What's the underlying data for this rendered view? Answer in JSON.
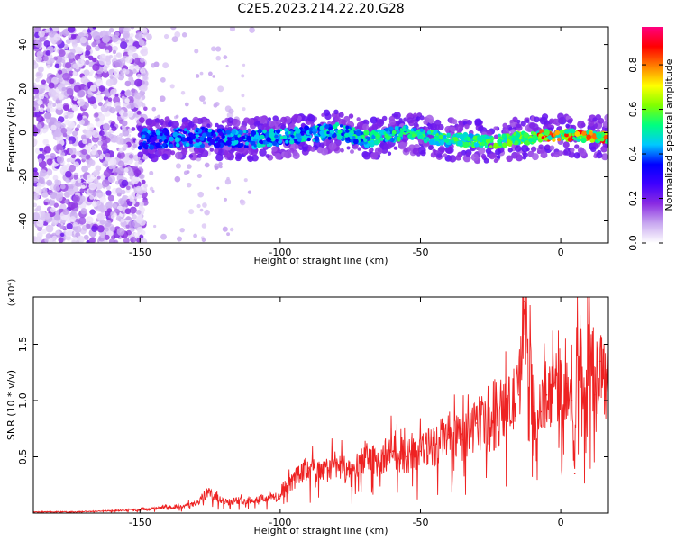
{
  "title": "C2E5.2023.214.22.20.G28",
  "chart_data": [
    {
      "type": "heatmap",
      "xlabel": "Height of straight line (km)",
      "ylabel": "Frequency (Hz)",
      "xlim": [
        -188,
        17
      ],
      "ylim": [
        -50,
        48
      ],
      "xticks": [
        -150,
        -100,
        -50,
        0
      ],
      "yticks": [
        -40,
        -20,
        0,
        20,
        40
      ],
      "colorbar": {
        "label": "Normalized spectral amplitude",
        "range": [
          0,
          0.97
        ],
        "ticks": [
          "0.0",
          "0.2",
          "0.4",
          "0.6",
          "0.8"
        ],
        "colors": [
          "#ffffff",
          "#c8a8f0",
          "#8a2be2",
          "#3f00ff",
          "#0000ff",
          "#00c8ff",
          "#00ff80",
          "#80ff00",
          "#ffff00",
          "#ff8000",
          "#ff0000",
          "#ff0080"
        ]
      },
      "ridge": [
        {
          "x": -150,
          "y": -3
        },
        {
          "x": -130,
          "y": -2
        },
        {
          "x": -110,
          "y": -3
        },
        {
          "x": -90,
          "y": -1
        },
        {
          "x": -80,
          "y": 1
        },
        {
          "x": -70,
          "y": -3
        },
        {
          "x": -55,
          "y": 0
        },
        {
          "x": -40,
          "y": -3
        },
        {
          "x": -25,
          "y": -4
        },
        {
          "x": -10,
          "y": -2
        },
        {
          "x": 0,
          "y": -1
        },
        {
          "x": 15,
          "y": -2
        }
      ]
    },
    {
      "type": "line",
      "xlabel": "Height of straight line (km)",
      "ylabel": "SNR (10 * v/v)",
      "yscale_label": "(x10⁴)",
      "xlim": [
        -188,
        17
      ],
      "ylim": [
        0.0,
        1.92
      ],
      "xticks": [
        -150,
        -100,
        -50,
        0
      ],
      "yticks": [
        0.5,
        1.0,
        1.5
      ],
      "color": "#ee2222",
      "series": [
        {
          "x": [
            -188,
            -175,
            -160,
            -150,
            -140,
            -130,
            -126,
            -120,
            -110,
            -100,
            -95,
            -90,
            -85,
            -80,
            -75,
            -70,
            -65,
            -60,
            -55,
            -50,
            -45,
            -40,
            -35,
            -30,
            -25,
            -20,
            -15,
            -13,
            -10,
            -7,
            -5,
            -3,
            0,
            2,
            4,
            5,
            6,
            8,
            9,
            10,
            12,
            14,
            16
          ],
          "y": [
            0.01,
            0.01,
            0.02,
            0.03,
            0.05,
            0.08,
            0.18,
            0.1,
            0.12,
            0.15,
            0.3,
            0.4,
            0.35,
            0.45,
            0.35,
            0.5,
            0.45,
            0.55,
            0.5,
            0.55,
            0.6,
            0.7,
            0.65,
            0.8,
            0.75,
            0.9,
            1.05,
            1.88,
            0.95,
            0.9,
            1.05,
            1.1,
            1.1,
            1.15,
            1.0,
            0.35,
            1.92,
            1.0,
            0.9,
            1.65,
            1.05,
            1.35,
            1.15
          ]
        }
      ]
    }
  ]
}
